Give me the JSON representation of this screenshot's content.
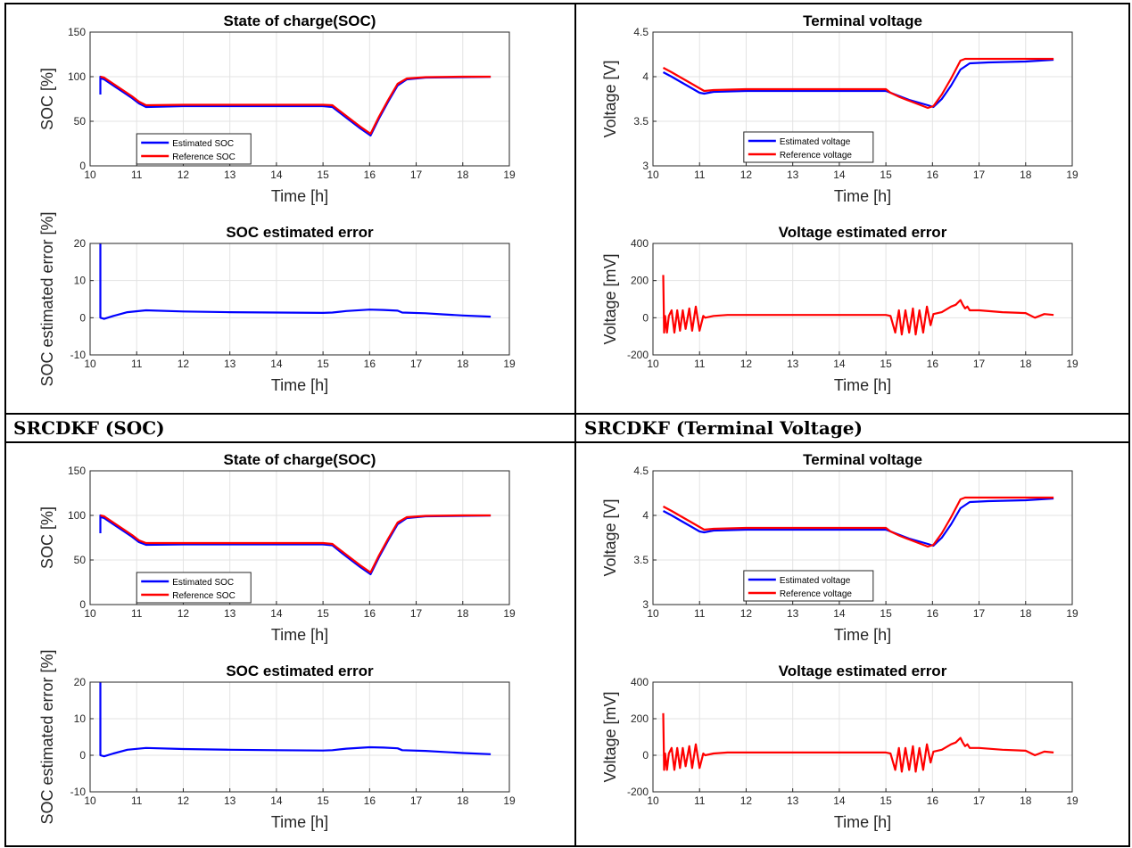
{
  "captions": [
    "SRCDKF (SOC)",
    "SRCDKF (Terminal Voltage)"
  ],
  "chart_data": [
    {
      "id": "soc_top",
      "type": "line",
      "title": "State of charge(SOC)",
      "xlabel": "Time [h]",
      "ylabel": "SOC [%]",
      "xlim": [
        10,
        19
      ],
      "ylim": [
        0,
        150
      ],
      "xticks": [
        10,
        11,
        12,
        13,
        14,
        15,
        16,
        17,
        18,
        19
      ],
      "yticks": [
        0,
        50,
        100,
        150
      ],
      "grid": true,
      "legend": "bottom-left",
      "series": [
        {
          "name": "Estimated SOC",
          "color": "#0000ff",
          "x": [
            10.22,
            10.22,
            10.23,
            10.3,
            10.5,
            10.7,
            10.9,
            11.05,
            11.2,
            12,
            13,
            14,
            15,
            15.2,
            15.4,
            15.6,
            15.8,
            16.02,
            16.2,
            16.4,
            16.6,
            16.8,
            17.2,
            18,
            18.6
          ],
          "y": [
            80,
            100,
            98,
            97,
            90,
            83,
            76,
            70,
            66,
            67,
            67,
            67,
            67,
            66,
            58,
            50,
            42,
            34,
            53,
            72,
            90,
            97,
            99,
            99.5,
            99.8
          ]
        },
        {
          "name": "Reference SOC",
          "color": "#ff0000",
          "x": [
            10.22,
            10.3,
            10.5,
            10.7,
            10.9,
            11.05,
            11.2,
            12,
            13,
            14,
            15,
            15.2,
            15.4,
            15.6,
            15.8,
            16.02,
            16.2,
            16.4,
            16.6,
            16.8,
            17.2,
            18,
            18.6
          ],
          "y": [
            100,
            99,
            92,
            85,
            78,
            72,
            68,
            68.5,
            68.5,
            68.5,
            68.5,
            68,
            60,
            52,
            44,
            36,
            55,
            74,
            92,
            98,
            99.5,
            100,
            100
          ]
        }
      ]
    },
    {
      "id": "soc_err_top",
      "type": "line",
      "title": "SOC estimated error",
      "xlabel": "Time [h]",
      "ylabel": "SOC estimated error [%]",
      "xlim": [
        10,
        19
      ],
      "ylim": [
        -10,
        20
      ],
      "xticks": [
        10,
        11,
        12,
        13,
        14,
        15,
        16,
        17,
        18,
        19
      ],
      "yticks": [
        -10,
        0,
        10,
        20
      ],
      "grid": true,
      "series": [
        {
          "name": "",
          "color": "#0000ff",
          "x": [
            10.22,
            10.22,
            10.3,
            10.5,
            10.8,
            11.2,
            12,
            13,
            14,
            15,
            15.2,
            15.5,
            16,
            16.3,
            16.6,
            16.7,
            17.2,
            17.6,
            18,
            18.6
          ],
          "y": [
            20,
            0,
            -0.3,
            0.5,
            1.5,
            2,
            1.7,
            1.5,
            1.4,
            1.3,
            1.4,
            1.8,
            2.2,
            2.1,
            1.9,
            1.4,
            1.2,
            0.9,
            0.6,
            0.3
          ]
        }
      ]
    },
    {
      "id": "volt_top",
      "type": "line",
      "title": "Terminal voltage",
      "xlabel": "Time [h]",
      "ylabel": "Voltage [V]",
      "xlim": [
        10,
        19
      ],
      "ylim": [
        3,
        4.5
      ],
      "xticks": [
        10,
        11,
        12,
        13,
        14,
        15,
        16,
        17,
        18,
        19
      ],
      "yticks": [
        3,
        3.5,
        4,
        4.5
      ],
      "grid": true,
      "legend": "bottom-center",
      "series": [
        {
          "name": "Estimated voltage",
          "color": "#0000ff",
          "x": [
            10.22,
            10.4,
            10.6,
            10.8,
            11.0,
            11.1,
            11.3,
            12,
            13,
            14,
            15,
            15.1,
            15.3,
            15.5,
            15.7,
            15.9,
            16.02,
            16.2,
            16.4,
            16.6,
            16.8,
            17.2,
            18,
            18.6
          ],
          "y": [
            4.05,
            4.0,
            3.94,
            3.88,
            3.82,
            3.81,
            3.83,
            3.84,
            3.84,
            3.84,
            3.84,
            3.82,
            3.78,
            3.74,
            3.71,
            3.68,
            3.66,
            3.75,
            3.9,
            4.08,
            4.15,
            4.16,
            4.17,
            4.19
          ]
        },
        {
          "name": "Reference voltage",
          "color": "#ff0000",
          "x": [
            10.22,
            10.4,
            10.6,
            10.8,
            11.0,
            11.1,
            11.3,
            12,
            13,
            14,
            15,
            15.1,
            15.3,
            15.5,
            15.7,
            15.9,
            16.02,
            16.2,
            16.4,
            16.6,
            16.7,
            17.2,
            18,
            18.6
          ],
          "y": [
            4.1,
            4.05,
            3.99,
            3.93,
            3.87,
            3.84,
            3.85,
            3.86,
            3.86,
            3.86,
            3.86,
            3.82,
            3.77,
            3.73,
            3.69,
            3.65,
            3.67,
            3.8,
            3.98,
            4.18,
            4.2,
            4.2,
            4.2,
            4.2
          ]
        }
      ]
    },
    {
      "id": "volt_err_top",
      "type": "line",
      "title": "Voltage estimated error",
      "xlabel": "Time [h]",
      "ylabel": "Voltage [mV]",
      "xlim": [
        10,
        19
      ],
      "ylim": [
        -200,
        400
      ],
      "xticks": [
        10,
        11,
        12,
        13,
        14,
        15,
        16,
        17,
        18,
        19
      ],
      "yticks": [
        -200,
        0,
        200,
        400
      ],
      "grid": true,
      "series": [
        {
          "name": "",
          "color": "#ff0000",
          "x": [
            10.22,
            10.24,
            10.26,
            10.3,
            10.34,
            10.4,
            10.46,
            10.52,
            10.58,
            10.64,
            10.7,
            10.78,
            10.84,
            10.92,
            11.0,
            11.08,
            11.12,
            11.3,
            11.6,
            12,
            13,
            14,
            15,
            15.1,
            15.2,
            15.28,
            15.34,
            15.42,
            15.5,
            15.58,
            15.64,
            15.72,
            15.8,
            15.88,
            15.96,
            16.02,
            16.2,
            16.4,
            16.5,
            16.6,
            16.65,
            16.7,
            16.75,
            16.8,
            17.0,
            17.5,
            18.0,
            18.2,
            18.4,
            18.6
          ],
          "y": [
            230,
            -80,
            10,
            -80,
            10,
            40,
            -80,
            40,
            -70,
            40,
            -60,
            50,
            -70,
            60,
            -70,
            10,
            0,
            10,
            15,
            15,
            15,
            15,
            15,
            10,
            -80,
            40,
            -90,
            40,
            -80,
            50,
            -90,
            40,
            -80,
            60,
            -40,
            20,
            30,
            60,
            70,
            95,
            70,
            50,
            60,
            40,
            40,
            30,
            25,
            0,
            20,
            15
          ]
        }
      ]
    },
    {
      "id": "soc_bottom",
      "type": "line",
      "title": "State of charge(SOC)",
      "xlabel": "Time [h]",
      "ylabel": "SOC [%]",
      "xlim": [
        10,
        19
      ],
      "ylim": [
        0,
        150
      ],
      "xticks": [
        10,
        11,
        12,
        13,
        14,
        15,
        16,
        17,
        18,
        19
      ],
      "yticks": [
        0,
        50,
        100,
        150
      ],
      "grid": true,
      "legend": "bottom-left",
      "series": [
        {
          "name": "Estimated SOC",
          "color": "#0000ff",
          "x": [
            10.22,
            10.22,
            10.23,
            10.3,
            10.5,
            10.7,
            10.9,
            11.05,
            11.2,
            12,
            13,
            14,
            15,
            15.2,
            15.4,
            15.6,
            15.8,
            16.02,
            16.2,
            16.4,
            16.6,
            16.8,
            17.2,
            18,
            18.6
          ],
          "y": [
            80,
            100,
            98,
            97,
            90,
            83,
            76,
            70,
            67,
            67.5,
            67.5,
            67.5,
            67.5,
            66.5,
            58,
            50,
            42,
            34,
            53,
            72,
            90,
            97,
            99,
            99.5,
            99.8
          ]
        },
        {
          "name": "Reference SOC",
          "color": "#ff0000",
          "x": [
            10.22,
            10.3,
            10.5,
            10.7,
            10.9,
            11.05,
            11.2,
            12,
            13,
            14,
            15,
            15.2,
            15.4,
            15.6,
            15.8,
            16.02,
            16.2,
            16.4,
            16.6,
            16.8,
            17.2,
            18,
            18.6
          ],
          "y": [
            100,
            99,
            92,
            85,
            78,
            72,
            69,
            69,
            69,
            69,
            69,
            68,
            60,
            52,
            44,
            36,
            55,
            74,
            92,
            98,
            99.5,
            100,
            100
          ]
        }
      ]
    },
    {
      "id": "soc_err_bottom",
      "type": "line",
      "title": "SOC estimated error",
      "xlabel": "Time [h]",
      "ylabel": "SOC estimated error [%]",
      "xlim": [
        10,
        19
      ],
      "ylim": [
        -10,
        20
      ],
      "xticks": [
        10,
        11,
        12,
        13,
        14,
        15,
        16,
        17,
        18,
        19
      ],
      "yticks": [
        -10,
        0,
        10,
        20
      ],
      "grid": true,
      "series": [
        {
          "name": "",
          "color": "#0000ff",
          "x": [
            10.22,
            10.22,
            10.3,
            10.5,
            10.8,
            11.2,
            12,
            13,
            14,
            15,
            15.2,
            15.5,
            16,
            16.3,
            16.6,
            16.7,
            17.2,
            17.6,
            18,
            18.6
          ],
          "y": [
            20,
            0,
            -0.3,
            0.5,
            1.5,
            2,
            1.7,
            1.5,
            1.4,
            1.3,
            1.4,
            1.8,
            2.2,
            2.1,
            1.9,
            1.4,
            1.2,
            0.9,
            0.6,
            0.3
          ]
        }
      ]
    },
    {
      "id": "volt_bottom",
      "type": "line",
      "title": "Terminal voltage",
      "xlabel": "Time [h]",
      "ylabel": "Voltage [V]",
      "xlim": [
        10,
        19
      ],
      "ylim": [
        3,
        4.5
      ],
      "xticks": [
        10,
        11,
        12,
        13,
        14,
        15,
        16,
        17,
        18,
        19
      ],
      "yticks": [
        3,
        3.5,
        4,
        4.5
      ],
      "grid": true,
      "legend": "bottom-center",
      "series": [
        {
          "name": "Estimated voltage",
          "color": "#0000ff",
          "x": [
            10.22,
            10.4,
            10.6,
            10.8,
            11.0,
            11.1,
            11.3,
            12,
            13,
            14,
            15,
            15.1,
            15.3,
            15.5,
            15.7,
            15.9,
            16.02,
            16.2,
            16.4,
            16.6,
            16.8,
            17.2,
            18,
            18.6
          ],
          "y": [
            4.05,
            4.0,
            3.94,
            3.88,
            3.82,
            3.81,
            3.83,
            3.84,
            3.84,
            3.84,
            3.84,
            3.82,
            3.78,
            3.74,
            3.71,
            3.68,
            3.66,
            3.75,
            3.9,
            4.08,
            4.15,
            4.16,
            4.17,
            4.19
          ]
        },
        {
          "name": "Reference voltage",
          "color": "#ff0000",
          "x": [
            10.22,
            10.4,
            10.6,
            10.8,
            11.0,
            11.1,
            11.3,
            12,
            13,
            14,
            15,
            15.1,
            15.3,
            15.5,
            15.7,
            15.9,
            16.02,
            16.2,
            16.4,
            16.6,
            16.7,
            17.2,
            18,
            18.6
          ],
          "y": [
            4.1,
            4.05,
            3.99,
            3.93,
            3.87,
            3.84,
            3.85,
            3.86,
            3.86,
            3.86,
            3.86,
            3.82,
            3.77,
            3.73,
            3.69,
            3.65,
            3.67,
            3.8,
            3.98,
            4.18,
            4.2,
            4.2,
            4.2,
            4.2
          ]
        }
      ]
    },
    {
      "id": "volt_err_bottom",
      "type": "line",
      "title": "Voltage estimated error",
      "xlabel": "Time [h]",
      "ylabel": "Voltage [mV]",
      "xlim": [
        10,
        19
      ],
      "ylim": [
        -200,
        400
      ],
      "xticks": [
        10,
        11,
        12,
        13,
        14,
        15,
        16,
        17,
        18,
        19
      ],
      "yticks": [
        -200,
        0,
        200,
        400
      ],
      "grid": true,
      "series": [
        {
          "name": "",
          "color": "#ff0000",
          "x": [
            10.22,
            10.24,
            10.26,
            10.3,
            10.34,
            10.4,
            10.46,
            10.52,
            10.58,
            10.64,
            10.7,
            10.78,
            10.84,
            10.92,
            11.0,
            11.08,
            11.12,
            11.3,
            11.6,
            12,
            13,
            14,
            15,
            15.1,
            15.2,
            15.28,
            15.34,
            15.42,
            15.5,
            15.58,
            15.64,
            15.72,
            15.8,
            15.88,
            15.96,
            16.02,
            16.2,
            16.4,
            16.5,
            16.6,
            16.65,
            16.7,
            16.75,
            16.8,
            17.0,
            17.5,
            18.0,
            18.2,
            18.4,
            18.6
          ],
          "y": [
            230,
            -80,
            10,
            -80,
            10,
            40,
            -80,
            40,
            -70,
            40,
            -60,
            50,
            -70,
            60,
            -70,
            10,
            0,
            10,
            15,
            15,
            15,
            15,
            15,
            10,
            -80,
            40,
            -90,
            40,
            -80,
            50,
            -90,
            40,
            -80,
            60,
            -40,
            20,
            30,
            60,
            70,
            95,
            70,
            50,
            60,
            40,
            40,
            30,
            25,
            0,
            20,
            15
          ]
        }
      ]
    }
  ]
}
